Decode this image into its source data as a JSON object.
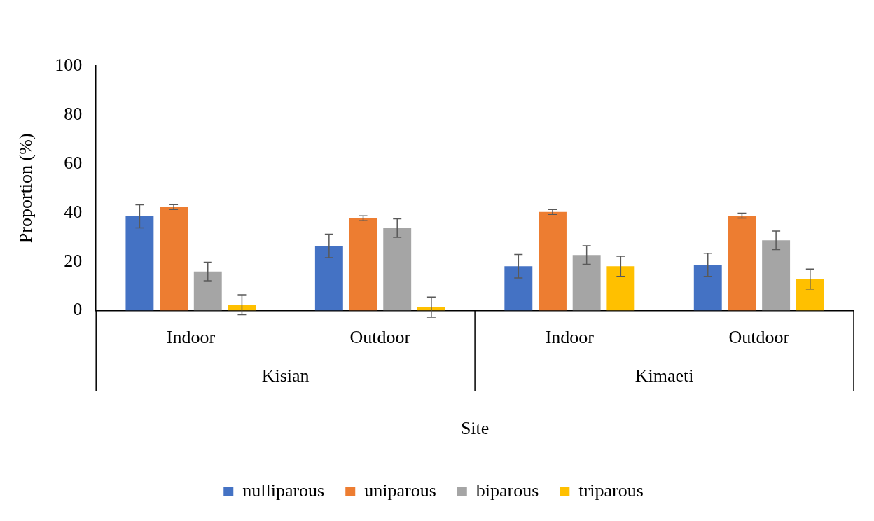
{
  "chart_data": {
    "type": "bar",
    "xlabel": "Site",
    "ylabel": "Proportion (%)",
    "categories": [
      "Indoor",
      "Outdoor",
      "Indoor",
      "Outdoor"
    ],
    "annotations": [
      "Kisian",
      "Kimaeti"
    ],
    "ylim": [
      0,
      100
    ],
    "yticks": [
      0,
      20,
      40,
      60,
      80,
      100
    ],
    "grid": false,
    "legend": "bottom",
    "series": [
      {
        "name": "nulliparous",
        "color": "#4472c4",
        "values": [
          38.5,
          26.4,
          18.1,
          18.7
        ],
        "errors": [
          4.7,
          4.8,
          4.8,
          4.7
        ]
      },
      {
        "name": "uniparous",
        "color": "#ed7d31",
        "values": [
          42.3,
          37.7,
          40.3,
          38.8
        ],
        "errors": [
          1,
          1,
          1,
          1
        ]
      },
      {
        "name": "biparous",
        "color": "#a5a5a5",
        "values": [
          16,
          33.7,
          22.7,
          28.7
        ],
        "errors": [
          3.8,
          3.8,
          3.8,
          3.8
        ]
      },
      {
        "name": "triparous",
        "color": "#ffc000",
        "values": [
          2.4,
          1.4,
          18.1,
          12.9
        ],
        "errors": [
          4.1,
          4.1,
          4.1,
          4.1
        ]
      }
    ]
  }
}
